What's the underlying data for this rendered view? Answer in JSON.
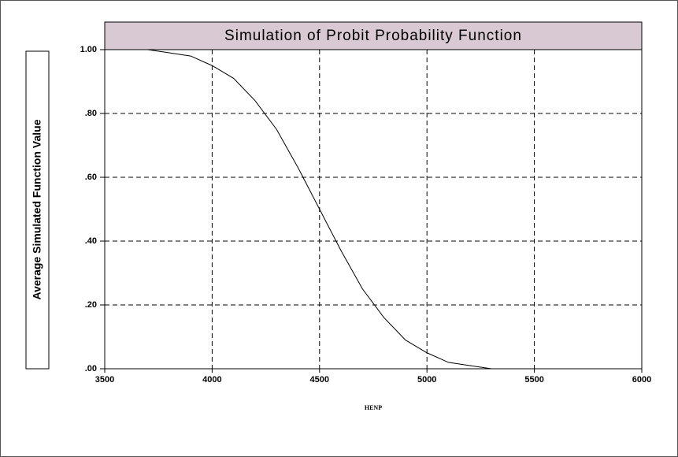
{
  "chart_data": {
    "type": "line",
    "title": "Simulation of Probit Probability Function",
    "x_label": "HENP",
    "y_label": "Average Simulated Function Value",
    "x": [
      3500,
      3600,
      3700,
      3800,
      3900,
      4000,
      4100,
      4200,
      4300,
      4400,
      4500,
      4600,
      4700,
      4800,
      4900,
      5000,
      5100,
      5200,
      5300,
      5400,
      5500,
      5600,
      5700,
      5800,
      5900,
      6000
    ],
    "series": [
      {
        "color": "#000000",
        "values": [
          1.0,
          1.0,
          1.0,
          0.99,
          0.98,
          0.95,
          0.91,
          0.84,
          0.75,
          0.63,
          0.5,
          0.37,
          0.25,
          0.16,
          0.09,
          0.05,
          0.02,
          0.01,
          0.0,
          0.0,
          0.0,
          0.0,
          0.0,
          0.0,
          0.0,
          0.0
        ]
      }
    ],
    "xlim": [
      3500,
      6000
    ],
    "xticks": [
      3500,
      4000,
      4500,
      5000,
      5500,
      6000
    ],
    "ylim": [
      0,
      1
    ],
    "yticks": [
      {
        "value": 0,
        "label": ".00"
      },
      {
        "value": 0.2,
        "label": ".20"
      },
      {
        "value": 0.4,
        "label": ".40"
      },
      {
        "value": 0.6,
        "label": ".60"
      },
      {
        "value": 0.8,
        "label": ".80"
      },
      {
        "value": 1,
        "label": "1.00"
      }
    ],
    "grid": true
  }
}
